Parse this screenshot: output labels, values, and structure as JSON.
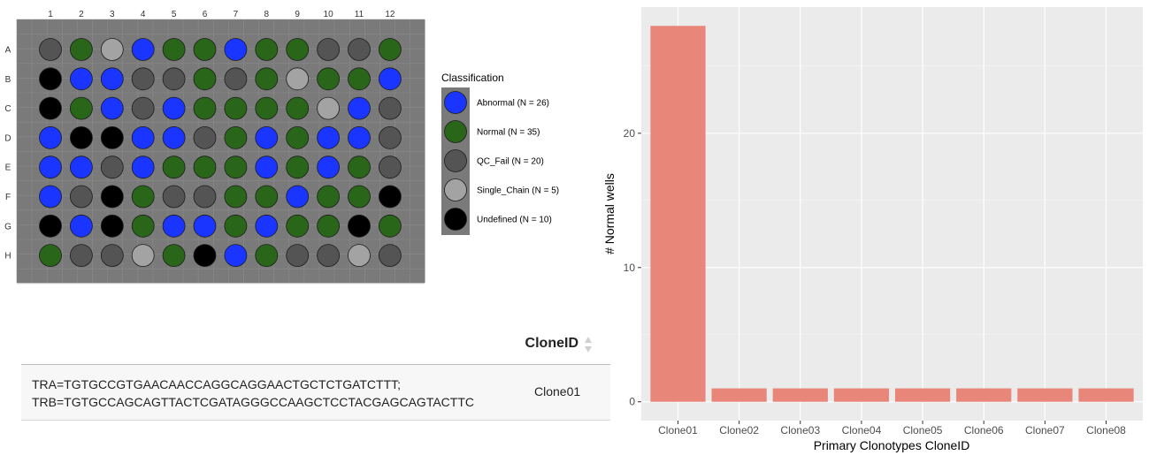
{
  "plate": {
    "columns": [
      "1",
      "2",
      "3",
      "4",
      "5",
      "6",
      "7",
      "8",
      "9",
      "10",
      "11",
      "12"
    ],
    "rows": [
      "A",
      "B",
      "C",
      "D",
      "E",
      "F",
      "G",
      "H"
    ],
    "wells": [
      [
        "QC_Fail",
        "Normal",
        "Single_Chain",
        "Abnormal",
        "Normal",
        "Normal",
        "Abnormal",
        "Normal",
        "Normal",
        "QC_Fail",
        "QC_Fail",
        "Normal"
      ],
      [
        "Undefined",
        "Abnormal",
        "Abnormal",
        "QC_Fail",
        "QC_Fail",
        "Normal",
        "QC_Fail",
        "Normal",
        "Single_Chain",
        "Normal",
        "Normal",
        "Abnormal"
      ],
      [
        "Undefined",
        "Normal",
        "Abnormal",
        "QC_Fail",
        "Abnormal",
        "Normal",
        "Normal",
        "Normal",
        "Normal",
        "Single_Chain",
        "Abnormal",
        "QC_Fail"
      ],
      [
        "Abnormal",
        "Undefined",
        "Undefined",
        "Abnormal",
        "Abnormal",
        "QC_Fail",
        "Normal",
        "Abnormal",
        "Normal",
        "Abnormal",
        "Abnormal",
        "QC_Fail"
      ],
      [
        "Abnormal",
        "Abnormal",
        "QC_Fail",
        "Abnormal",
        "Normal",
        "Normal",
        "Normal",
        "Abnormal",
        "Normal",
        "Abnormal",
        "Normal",
        "QC_Fail"
      ],
      [
        "Abnormal",
        "QC_Fail",
        "Undefined",
        "Normal",
        "QC_Fail",
        "QC_Fail",
        "Normal",
        "Normal",
        "Abnormal",
        "Normal",
        "Normal",
        "Undefined"
      ],
      [
        "Undefined",
        "Abnormal",
        "Undefined",
        "Normal",
        "Abnormal",
        "Abnormal",
        "Normal",
        "Abnormal",
        "Normal",
        "Normal",
        "Undefined",
        "Normal"
      ],
      [
        "Normal",
        "QC_Fail",
        "QC_Fail",
        "Single_Chain",
        "Normal",
        "Undefined",
        "Abnormal",
        "Normal",
        "QC_Fail",
        "QC_Fail",
        "Single_Chain",
        "QC_Fail"
      ]
    ],
    "legend_title": "Classification",
    "legend": [
      {
        "key": "Abnormal",
        "label": "Abnormal (N = 26)",
        "color": "#1a35ff"
      },
      {
        "key": "Normal",
        "label": "Normal (N = 35)",
        "color": "#2a661a"
      },
      {
        "key": "QC_Fail",
        "label": "QC_Fail (N = 20)",
        "color": "#545454"
      },
      {
        "key": "Single_Chain",
        "label": "Single_Chain (N = 5)",
        "color": "#a3a3a3"
      },
      {
        "key": "Undefined",
        "label": "Undefined (N = 10)",
        "color": "#000000"
      }
    ]
  },
  "table": {
    "header": "CloneID",
    "rows": [
      {
        "tra": "TRA=TGTGCCGTGAACAACCAGGCAGGAACTGCTCTGATCTTT;",
        "trb": "TRB=TGTGCCAGCAGTTACTCGATAGGGCCAAGCTCCTACGAGCAGTACTTC",
        "clone": "Clone01"
      }
    ]
  },
  "chart_data": {
    "type": "bar",
    "categories": [
      "Clone01",
      "Clone02",
      "Clone03",
      "Clone04",
      "Clone05",
      "Clone06",
      "Clone07",
      "Clone08"
    ],
    "values": [
      28,
      1,
      1,
      1,
      1,
      1,
      1,
      1
    ],
    "xlabel": "Primary Clonotypes CloneID",
    "ylabel": "# Normal wells",
    "ylim": [
      -1.4,
      29.4
    ],
    "yticks": [
      0,
      10,
      20
    ],
    "bar_color": "#e8867a",
    "panel_color": "#ebebeb",
    "grid": true
  }
}
